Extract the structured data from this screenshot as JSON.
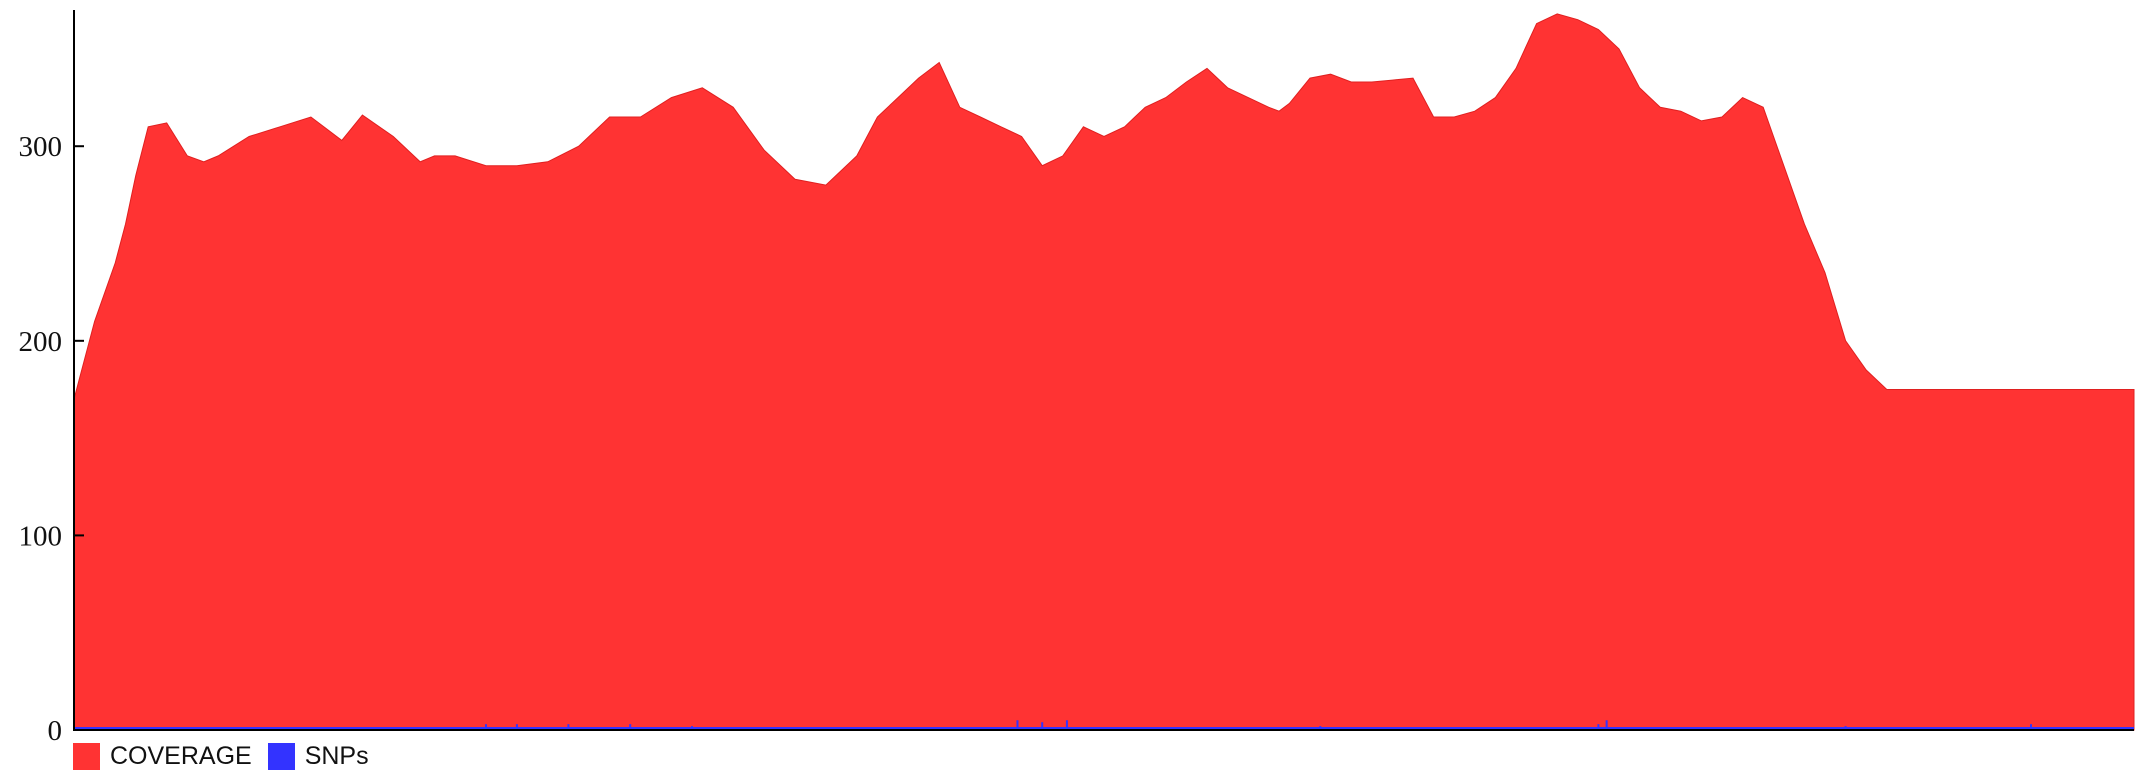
{
  "colors": {
    "coverage": "#ff3333",
    "snps": "#3333ff",
    "axis": "#000000"
  },
  "chart_data": {
    "type": "area",
    "title": "",
    "xlabel": "",
    "ylabel": "",
    "ylim": [
      0,
      370
    ],
    "yticks": [
      {
        "value": 0,
        "label": "0"
      },
      {
        "value": 100,
        "label": "100"
      },
      {
        "value": 200,
        "label": "200"
      },
      {
        "value": 300,
        "label": "300"
      }
    ],
    "x_ticks_shown": false,
    "grid": false,
    "legend_position": "bottom-left",
    "series": [
      {
        "name": "COVERAGE",
        "kind": "area",
        "x_fraction": [
          0.0,
          0.01,
          0.02,
          0.025,
          0.03,
          0.036,
          0.045,
          0.055,
          0.063,
          0.07,
          0.085,
          0.1,
          0.115,
          0.13,
          0.14,
          0.155,
          0.168,
          0.175,
          0.185,
          0.2,
          0.215,
          0.23,
          0.245,
          0.26,
          0.275,
          0.29,
          0.305,
          0.32,
          0.335,
          0.35,
          0.365,
          0.38,
          0.39,
          0.4,
          0.41,
          0.42,
          0.43,
          0.44,
          0.45,
          0.46,
          0.47,
          0.48,
          0.49,
          0.5,
          0.51,
          0.515,
          0.52,
          0.53,
          0.54,
          0.55,
          0.56,
          0.57,
          0.58,
          0.585,
          0.59,
          0.6,
          0.61,
          0.62,
          0.63,
          0.64,
          0.65,
          0.66,
          0.67,
          0.68,
          0.69,
          0.7,
          0.71,
          0.72,
          0.73,
          0.74,
          0.75,
          0.76,
          0.77,
          0.78,
          0.79,
          0.8,
          0.81,
          0.82,
          0.83,
          0.84,
          0.85,
          0.86,
          0.87,
          0.88,
          0.89,
          0.9,
          0.91,
          0.92,
          0.93,
          0.94,
          0.95,
          0.96,
          0.965,
          0.97,
          0.975,
          0.98,
          0.985,
          0.99,
          0.995,
          1.0
        ],
        "values": [
          170,
          210,
          240,
          260,
          285,
          310,
          312,
          295,
          292,
          295,
          305,
          310,
          315,
          303,
          316,
          305,
          292,
          295,
          295,
          290,
          290,
          292,
          300,
          315,
          315,
          325,
          330,
          320,
          298,
          283,
          280,
          295,
          315,
          325,
          335,
          343,
          320,
          315,
          310,
          305,
          290,
          295,
          310,
          305,
          310,
          315,
          320,
          325,
          333,
          340,
          330,
          325,
          320,
          318,
          322,
          335,
          337,
          333,
          333,
          334,
          335,
          315,
          315,
          318,
          325,
          340,
          363,
          368,
          365,
          360,
          350,
          330,
          320,
          318,
          313,
          315,
          325,
          320,
          290,
          260,
          235,
          200,
          185,
          175,
          175,
          175,
          175,
          175,
          175,
          175,
          175,
          175,
          175,
          175,
          175,
          175,
          175,
          175,
          175,
          175
        ]
      },
      {
        "name": "SNPs",
        "kind": "spikes",
        "baseline": 1,
        "spikes": [
          {
            "x_fraction": 0.2,
            "value": 3
          },
          {
            "x_fraction": 0.215,
            "value": 3
          },
          {
            "x_fraction": 0.24,
            "value": 3
          },
          {
            "x_fraction": 0.27,
            "value": 3
          },
          {
            "x_fraction": 0.3,
            "value": 2
          },
          {
            "x_fraction": 0.458,
            "value": 5
          },
          {
            "x_fraction": 0.47,
            "value": 4
          },
          {
            "x_fraction": 0.482,
            "value": 5
          },
          {
            "x_fraction": 0.605,
            "value": 2
          },
          {
            "x_fraction": 0.744,
            "value": 5
          },
          {
            "x_fraction": 0.74,
            "value": 3
          },
          {
            "x_fraction": 0.86,
            "value": 2
          },
          {
            "x_fraction": 0.95,
            "value": 3
          }
        ]
      }
    ]
  }
}
